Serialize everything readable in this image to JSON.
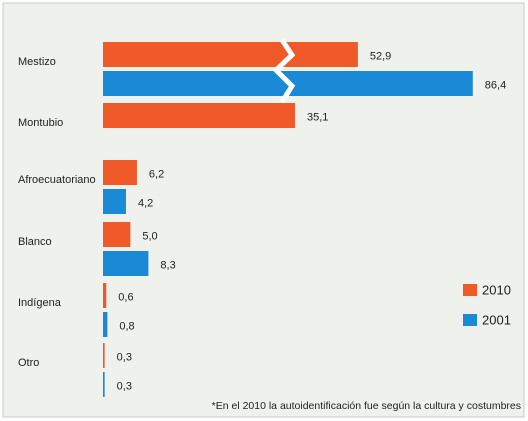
{
  "chart_data": {
    "type": "bar",
    "orientation": "horizontal",
    "categories": [
      "Mestizo",
      "Montubio",
      "Afroecuatoriano",
      "Blanco",
      "Indígena",
      "Otro"
    ],
    "series": [
      {
        "name": "2010",
        "color": "#f05a28",
        "values": [
          52.9,
          35.1,
          6.2,
          5.0,
          0.6,
          0.3
        ],
        "value_labels": [
          "52,9",
          "35,1",
          "6,2",
          "5,0",
          "0,6",
          "0,3"
        ]
      },
      {
        "name": "2001",
        "color": "#1b8ad6",
        "values": [
          86.4,
          null,
          4.2,
          8.3,
          0.8,
          0.3
        ],
        "value_labels": [
          "86,4",
          null,
          "4,2",
          "8,3",
          "0,8",
          "0,3"
        ]
      }
    ],
    "legend": "right",
    "footnote": "*En el 2010 la autoidentificación fue según la cultura y costumbres"
  }
}
